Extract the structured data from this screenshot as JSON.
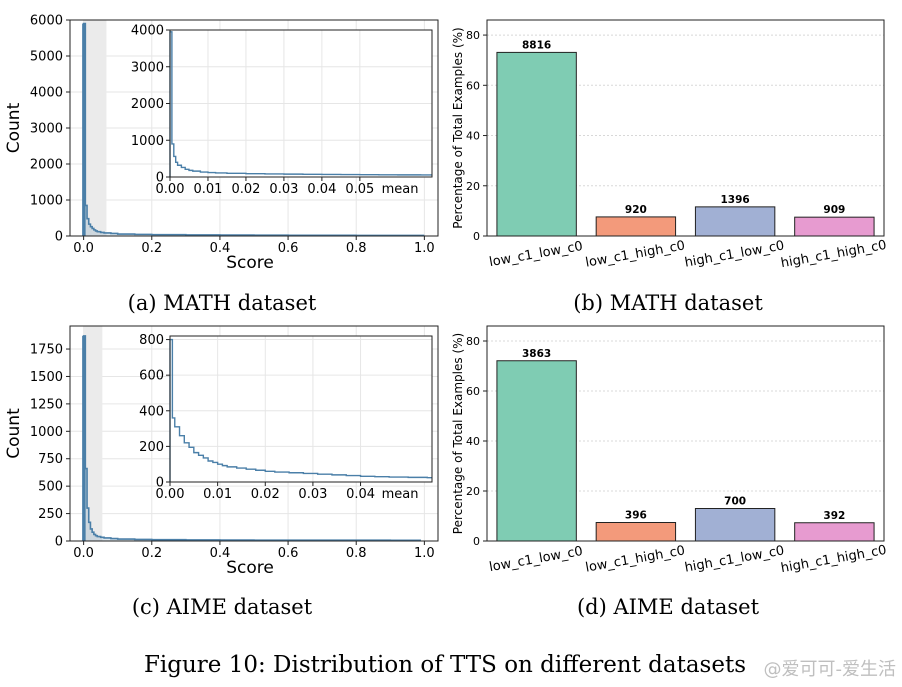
{
  "figure": {
    "caption": "Figure 10: Distribution of TTS on different datasets",
    "watermark": "@爱可可-爱生活"
  },
  "colors": {
    "hist": "#4a7fa8",
    "shade": "#ebebeb",
    "grid": "#e6e6e6",
    "low_c1_low_c0": "#7fccb3",
    "low_c1_high_c0": "#f39a7b",
    "high_c1_low_c0": "#a1b0d4",
    "high_c1_high_c0": "#e79bd0"
  },
  "chart_data": [
    {
      "id": "a",
      "type": "histogram",
      "caption": "(a) MATH dataset",
      "xlabel": "Score",
      "ylabel": "Count",
      "xlim": [
        -0.04,
        1.04
      ],
      "ylim": [
        0,
        6000
      ],
      "xticks": [
        "0.0",
        "0.2",
        "0.4",
        "0.6",
        "0.8",
        "1.0"
      ],
      "xtick_values": [
        0,
        0.2,
        0.4,
        0.6,
        0.8,
        1.0
      ],
      "yticks": [
        "0",
        "1000",
        "2000",
        "3000",
        "4000",
        "5000",
        "6000"
      ],
      "ytick_values": [
        0,
        1000,
        2000,
        3000,
        4000,
        5000,
        6000
      ],
      "shaded_range": [
        0,
        0.067
      ],
      "bins": [
        [
          0.0,
          5900
        ],
        [
          0.005,
          850
        ],
        [
          0.01,
          480
        ],
        [
          0.015,
          330
        ],
        [
          0.02,
          260
        ],
        [
          0.025,
          210
        ],
        [
          0.03,
          170
        ],
        [
          0.035,
          140
        ],
        [
          0.04,
          120
        ],
        [
          0.05,
          100
        ],
        [
          0.06,
          85
        ],
        [
          0.08,
          70
        ],
        [
          0.1,
          55
        ],
        [
          0.15,
          45
        ],
        [
          0.2,
          38
        ],
        [
          0.3,
          30
        ],
        [
          0.4,
          25
        ],
        [
          0.5,
          22
        ],
        [
          0.6,
          20
        ],
        [
          0.7,
          18
        ],
        [
          0.8,
          17
        ],
        [
          0.9,
          15
        ],
        [
          0.99,
          15
        ]
      ],
      "inset": {
        "xlim": [
          0,
          0.069
        ],
        "ylim": [
          0,
          4000
        ],
        "xticks": [
          "0.00",
          "0.01",
          "0.02",
          "0.03",
          "0.04",
          "0.05"
        ],
        "xtick_values": [
          0,
          0.01,
          0.02,
          0.03,
          0.04,
          0.05
        ],
        "mean_label": "mean",
        "yticks": [
          "0",
          "1000",
          "2000",
          "3000",
          "4000"
        ],
        "ytick_values": [
          0,
          1000,
          2000,
          3000,
          4000
        ],
        "steps": [
          [
            0.0,
            3950
          ],
          [
            0.0005,
            900
          ],
          [
            0.001,
            560
          ],
          [
            0.0015,
            400
          ],
          [
            0.002,
            320
          ],
          [
            0.003,
            260
          ],
          [
            0.004,
            210
          ],
          [
            0.005,
            180
          ],
          [
            0.006,
            160
          ],
          [
            0.008,
            135
          ],
          [
            0.01,
            120
          ],
          [
            0.012,
            110
          ],
          [
            0.015,
            100
          ],
          [
            0.02,
            90
          ],
          [
            0.025,
            82
          ],
          [
            0.03,
            78
          ],
          [
            0.035,
            74
          ],
          [
            0.04,
            70
          ],
          [
            0.045,
            66
          ],
          [
            0.05,
            62
          ],
          [
            0.055,
            60
          ],
          [
            0.06,
            58
          ],
          [
            0.066,
            56
          ]
        ]
      }
    },
    {
      "id": "b",
      "type": "bar",
      "caption": "(b) MATH dataset",
      "ylabel": "Percentage of Total Examples (%)",
      "ylim": [
        0,
        86
      ],
      "yticks": [
        "0",
        "20",
        "40",
        "60",
        "80"
      ],
      "ytick_values": [
        0,
        20,
        40,
        60,
        80
      ],
      "categories": [
        "low_c1_low_c0",
        "low_c1_high_c0",
        "high_c1_low_c0",
        "high_c1_high_c0"
      ],
      "values": [
        73.1,
        7.6,
        11.6,
        7.5
      ],
      "labels": [
        "8816",
        "920",
        "1396",
        "909"
      ]
    },
    {
      "id": "c",
      "type": "histogram",
      "caption": "(c) AIME dataset",
      "xlabel": "Score",
      "ylabel": "Count",
      "xlim": [
        -0.04,
        1.04
      ],
      "ylim": [
        0,
        1960
      ],
      "xticks": [
        "0.0",
        "0.2",
        "0.4",
        "0.6",
        "0.8",
        "1.0"
      ],
      "xtick_values": [
        0,
        0.2,
        0.4,
        0.6,
        0.8,
        1.0
      ],
      "yticks": [
        "0",
        "250",
        "500",
        "750",
        "1000",
        "1250",
        "1500",
        "1750"
      ],
      "ytick_values": [
        0,
        250,
        500,
        750,
        1000,
        1250,
        1500,
        1750
      ],
      "shaded_range": [
        0,
        0.055
      ],
      "bins": [
        [
          0.0,
          1870
        ],
        [
          0.005,
          660
        ],
        [
          0.01,
          300
        ],
        [
          0.015,
          170
        ],
        [
          0.02,
          110
        ],
        [
          0.025,
          80
        ],
        [
          0.03,
          60
        ],
        [
          0.035,
          48
        ],
        [
          0.04,
          40
        ],
        [
          0.05,
          34
        ],
        [
          0.06,
          28
        ],
        [
          0.08,
          22
        ],
        [
          0.1,
          18
        ],
        [
          0.15,
          14
        ],
        [
          0.2,
          12
        ],
        [
          0.3,
          10
        ],
        [
          0.4,
          9
        ],
        [
          0.5,
          8
        ],
        [
          0.6,
          8
        ],
        [
          0.7,
          7
        ],
        [
          0.8,
          7
        ],
        [
          0.9,
          6
        ],
        [
          0.98,
          6
        ]
      ],
      "inset": {
        "xlim": [
          0,
          0.055
        ],
        "ylim": [
          0,
          820
        ],
        "xticks": [
          "0.00",
          "0.01",
          "0.02",
          "0.03",
          "0.04"
        ],
        "xtick_values": [
          0,
          0.01,
          0.02,
          0.03,
          0.04
        ],
        "mean_label": "mean",
        "yticks": [
          "0",
          "200",
          "400",
          "600",
          "800"
        ],
        "ytick_values": [
          0,
          200,
          400,
          600,
          800
        ],
        "steps": [
          [
            0.0,
            800
          ],
          [
            0.0005,
            360
          ],
          [
            0.001,
            310
          ],
          [
            0.002,
            260
          ],
          [
            0.003,
            220
          ],
          [
            0.004,
            195
          ],
          [
            0.005,
            165
          ],
          [
            0.006,
            150
          ],
          [
            0.007,
            135
          ],
          [
            0.008,
            118
          ],
          [
            0.009,
            110
          ],
          [
            0.01,
            100
          ],
          [
            0.011,
            92
          ],
          [
            0.012,
            85
          ],
          [
            0.014,
            78
          ],
          [
            0.016,
            72
          ],
          [
            0.018,
            66
          ],
          [
            0.02,
            60
          ],
          [
            0.022,
            56
          ],
          [
            0.025,
            52
          ],
          [
            0.028,
            48
          ],
          [
            0.031,
            44
          ],
          [
            0.034,
            40
          ],
          [
            0.037,
            36
          ],
          [
            0.04,
            32
          ],
          [
            0.043,
            30
          ],
          [
            0.046,
            28
          ],
          [
            0.05,
            26
          ],
          [
            0.054,
            24
          ]
        ]
      }
    },
    {
      "id": "d",
      "type": "bar",
      "caption": "(d) AIME dataset",
      "ylabel": "Percentage of Total Examples (%)",
      "ylim": [
        0,
        86
      ],
      "yticks": [
        "0",
        "20",
        "40",
        "60",
        "80"
      ],
      "ytick_values": [
        0,
        20,
        40,
        60,
        80
      ],
      "categories": [
        "low_c1_low_c0",
        "low_c1_high_c0",
        "high_c1_low_c0",
        "high_c1_high_c0"
      ],
      "values": [
        72.1,
        7.4,
        13.0,
        7.3
      ],
      "labels": [
        "3863",
        "396",
        "700",
        "392"
      ]
    }
  ]
}
